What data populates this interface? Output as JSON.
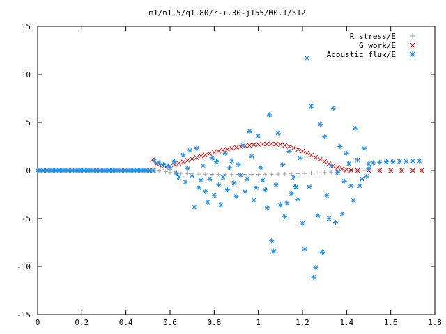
{
  "chart_data": {
    "type": "scatter",
    "title": "m1/n1.5/q1.80/r-+.30-j155/M0.1/512",
    "xlabel": "",
    "ylabel": "",
    "xlim": [
      0,
      1.8
    ],
    "ylim": [
      -15,
      15
    ],
    "x_ticks": [
      "0",
      "0.2",
      "0.4",
      "0.6",
      "0.8",
      "1",
      "1.2",
      "1.4",
      "1.6",
      "1.8"
    ],
    "y_ticks": [
      "15",
      "10",
      "5",
      "0",
      "-5",
      "-10",
      "-15"
    ],
    "grid": false,
    "legend_position": "top-right",
    "series": [
      {
        "name": "R stress/E",
        "marker": "plus",
        "color": "#a0a0a0",
        "points": [
          [
            0.52,
            0.1
          ],
          [
            0.55,
            -0.05
          ],
          [
            0.58,
            -0.12
          ],
          [
            0.6,
            -0.2
          ],
          [
            0.62,
            -0.25
          ],
          [
            0.65,
            -0.3
          ],
          [
            0.68,
            -0.32
          ],
          [
            0.7,
            -0.35
          ],
          [
            0.73,
            -0.37
          ],
          [
            0.76,
            -0.38
          ],
          [
            0.79,
            -0.4
          ],
          [
            0.82,
            -0.4
          ],
          [
            0.85,
            -0.41
          ],
          [
            0.88,
            -0.41
          ],
          [
            0.91,
            -0.41
          ],
          [
            0.94,
            -0.41
          ],
          [
            0.97,
            -0.4
          ],
          [
            1.0,
            -0.4
          ],
          [
            1.03,
            -0.39
          ],
          [
            1.06,
            -0.38
          ],
          [
            1.09,
            -0.37
          ],
          [
            1.12,
            -0.36
          ],
          [
            1.15,
            -0.34
          ],
          [
            1.18,
            -0.32
          ],
          [
            1.21,
            -0.3
          ],
          [
            1.24,
            -0.27
          ],
          [
            1.27,
            -0.24
          ],
          [
            1.3,
            -0.2
          ],
          [
            1.33,
            -0.16
          ],
          [
            1.36,
            -0.12
          ],
          [
            1.39,
            -0.08
          ],
          [
            1.42,
            -0.04
          ],
          [
            1.45,
            -0.02
          ],
          [
            1.48,
            0.0
          ],
          [
            1.51,
            0.0
          ],
          [
            1.55,
            0.0
          ],
          [
            1.6,
            0.0
          ],
          [
            1.65,
            0.0
          ],
          [
            1.7,
            0.0
          ],
          [
            1.74,
            0.0
          ]
        ]
      },
      {
        "name": "G work/E",
        "marker": "cross",
        "color": "#dd1111",
        "points": [
          [
            0.52,
            1.1
          ],
          [
            0.54,
            0.7
          ],
          [
            0.56,
            0.45
          ],
          [
            0.58,
            0.35
          ],
          [
            0.6,
            0.45
          ],
          [
            0.62,
            0.6
          ],
          [
            0.64,
            0.75
          ],
          [
            0.66,
            0.9
          ],
          [
            0.68,
            1.05
          ],
          [
            0.7,
            1.2
          ],
          [
            0.72,
            1.35
          ],
          [
            0.74,
            1.5
          ],
          [
            0.76,
            1.62
          ],
          [
            0.78,
            1.75
          ],
          [
            0.8,
            1.88
          ],
          [
            0.82,
            2.0
          ],
          [
            0.84,
            2.1
          ],
          [
            0.86,
            2.2
          ],
          [
            0.88,
            2.3
          ],
          [
            0.9,
            2.4
          ],
          [
            0.92,
            2.48
          ],
          [
            0.94,
            2.55
          ],
          [
            0.96,
            2.62
          ],
          [
            0.98,
            2.68
          ],
          [
            1.0,
            2.72
          ],
          [
            1.02,
            2.75
          ],
          [
            1.04,
            2.77
          ],
          [
            1.06,
            2.77
          ],
          [
            1.08,
            2.75
          ],
          [
            1.1,
            2.7
          ],
          [
            1.12,
            2.62
          ],
          [
            1.14,
            2.5
          ],
          [
            1.16,
            2.35
          ],
          [
            1.18,
            2.2
          ],
          [
            1.2,
            2.02
          ],
          [
            1.22,
            1.82
          ],
          [
            1.24,
            1.6
          ],
          [
            1.26,
            1.38
          ],
          [
            1.28,
            1.15
          ],
          [
            1.3,
            0.92
          ],
          [
            1.32,
            0.7
          ],
          [
            1.34,
            0.5
          ],
          [
            1.36,
            0.32
          ],
          [
            1.38,
            0.18
          ],
          [
            1.4,
            0.08
          ],
          [
            1.42,
            0.02
          ],
          [
            1.45,
            0.0
          ],
          [
            1.5,
            0.0
          ],
          [
            1.55,
            0.0
          ],
          [
            1.6,
            0.0
          ],
          [
            1.65,
            0.0
          ],
          [
            1.7,
            0.0
          ],
          [
            1.74,
            0.0
          ]
        ]
      },
      {
        "name": "Acoustic flux/E",
        "marker": "star",
        "color": "#1f8fe8",
        "points": [
          [
            0.53,
            1.0
          ],
          [
            0.55,
            0.8
          ],
          [
            0.57,
            0.6
          ],
          [
            0.59,
            0.5
          ],
          [
            0.6,
            0.3
          ],
          [
            0.62,
            0.9
          ],
          [
            0.63,
            -0.3
          ],
          [
            0.64,
            -0.7
          ],
          [
            0.66,
            1.6
          ],
          [
            0.67,
            -1.2
          ],
          [
            0.68,
            0.2
          ],
          [
            0.69,
            2.1
          ],
          [
            0.7,
            -0.6
          ],
          [
            0.71,
            -3.8
          ],
          [
            0.72,
            2.3
          ],
          [
            0.73,
            -1.8
          ],
          [
            0.74,
            -1.0
          ],
          [
            0.75,
            0.5
          ],
          [
            0.76,
            -2.2
          ],
          [
            0.77,
            -3.3
          ],
          [
            0.78,
            -0.9
          ],
          [
            0.79,
            1.3
          ],
          [
            0.8,
            -2.6
          ],
          [
            0.81,
            0.9
          ],
          [
            0.82,
            -1.5
          ],
          [
            0.83,
            -3.6
          ],
          [
            0.84,
            -0.7
          ],
          [
            0.85,
            1.8
          ],
          [
            0.86,
            -2.0
          ],
          [
            0.87,
            0.3
          ],
          [
            0.88,
            1.0
          ],
          [
            0.89,
            -1.3
          ],
          [
            0.9,
            -2.7
          ],
          [
            0.91,
            0.6
          ],
          [
            0.92,
            -0.5
          ],
          [
            0.93,
            2.6
          ],
          [
            0.94,
            -2.2
          ],
          [
            0.95,
            -0.9
          ],
          [
            0.96,
            4.1
          ],
          [
            0.97,
            1.5
          ],
          [
            0.98,
            -3.1
          ],
          [
            0.99,
            -1.8
          ],
          [
            1.0,
            3.6
          ],
          [
            1.01,
            0.3
          ],
          [
            1.02,
            -1.0
          ],
          [
            1.03,
            -2.0
          ],
          [
            1.04,
            -3.9
          ],
          [
            1.05,
            5.8
          ],
          [
            1.06,
            -7.3
          ],
          [
            1.07,
            -8.4
          ],
          [
            1.08,
            -1.5
          ],
          [
            1.09,
            3.9
          ],
          [
            1.1,
            -3.6
          ],
          [
            1.11,
            0.6
          ],
          [
            1.12,
            -4.8
          ],
          [
            1.13,
            -3.4
          ],
          [
            1.14,
            2.0
          ],
          [
            1.15,
            -2.4
          ],
          [
            1.16,
            -0.7
          ],
          [
            1.17,
            -1.7
          ],
          [
            1.18,
            -3.0
          ],
          [
            1.19,
            1.3
          ],
          [
            1.2,
            -5.5
          ],
          [
            1.21,
            -8.2
          ],
          [
            1.22,
            11.7
          ],
          [
            1.23,
            -1.7
          ],
          [
            1.24,
            6.7
          ],
          [
            1.25,
            -11.1
          ],
          [
            1.26,
            -10.1
          ],
          [
            1.27,
            -4.7
          ],
          [
            1.28,
            4.8
          ],
          [
            1.29,
            -8.5
          ],
          [
            1.3,
            3.5
          ],
          [
            1.31,
            -2.6
          ],
          [
            1.32,
            -5.0
          ],
          [
            1.33,
            0.5
          ],
          [
            1.34,
            6.5
          ],
          [
            1.35,
            -5.4
          ],
          [
            1.36,
            -0.2
          ],
          [
            1.37,
            2.5
          ],
          [
            1.38,
            -4.5
          ],
          [
            1.39,
            -1.1
          ],
          [
            1.4,
            1.8
          ],
          [
            1.41,
            0.7
          ],
          [
            1.42,
            -1.6
          ],
          [
            1.43,
            -3.1
          ],
          [
            1.44,
            4.4
          ],
          [
            1.45,
            1.1
          ],
          [
            1.46,
            -1.6
          ],
          [
            1.47,
            -0.9
          ],
          [
            1.48,
            2.3
          ],
          [
            1.49,
            -0.6
          ],
          [
            1.5,
            0.2
          ],
          [
            1.5,
            0.7
          ],
          [
            1.52,
            0.8
          ],
          [
            1.55,
            0.85
          ],
          [
            1.58,
            0.9
          ],
          [
            1.61,
            0.9
          ],
          [
            1.64,
            0.95
          ],
          [
            1.67,
            0.95
          ],
          [
            1.7,
            1.0
          ],
          [
            1.73,
            1.0
          ]
        ]
      }
    ]
  }
}
